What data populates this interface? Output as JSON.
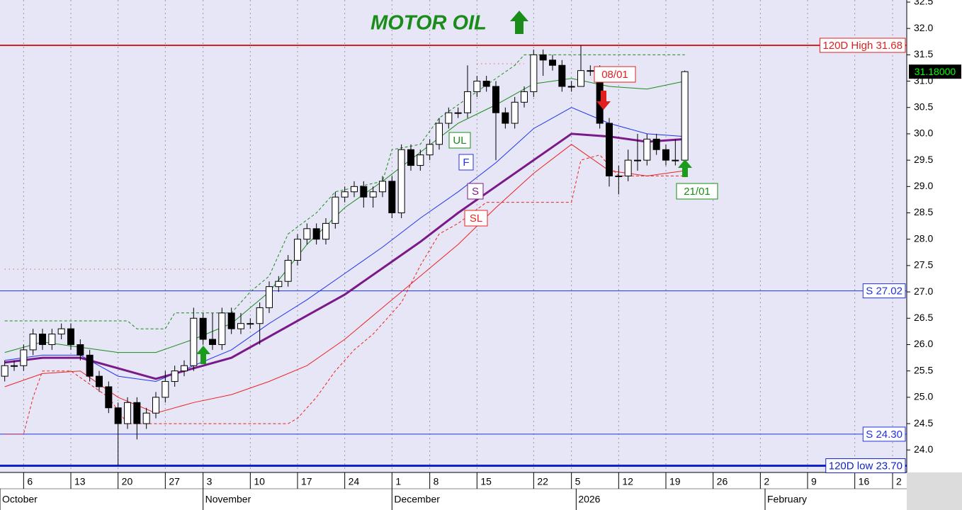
{
  "chart_data": {
    "type": "candlestick",
    "title": "MOTOR OIL",
    "x": [
      0,
      1,
      2,
      3,
      4,
      5,
      6,
      7,
      8,
      9,
      10,
      11,
      12,
      13,
      14,
      15,
      16,
      17,
      18,
      19,
      20,
      21,
      22,
      23,
      24,
      25,
      26,
      27,
      28,
      29,
      30,
      31,
      32,
      33,
      34,
      35,
      36,
      37,
      38,
      39,
      40,
      41,
      42,
      43,
      44,
      45,
      46,
      47,
      48,
      49,
      50,
      51,
      52,
      53,
      54,
      55,
      56,
      57,
      58,
      59,
      60,
      61,
      62,
      63,
      64,
      65,
      66,
      67,
      68,
      69,
      70,
      71,
      72
    ],
    "ohlc": {
      "up_color": "#ffffff",
      "down_color": "#000000",
      "open": [
        25.4,
        25.6,
        25.6,
        25.9,
        26.2,
        26.0,
        26.2,
        26.3,
        26.0,
        25.8,
        25.4,
        25.2,
        24.8,
        24.5,
        24.9,
        24.5,
        24.7,
        25.0,
        25.3,
        25.5,
        25.6,
        26.5,
        26.1,
        26.0,
        26.6,
        26.3,
        26.4,
        26.4,
        26.7,
        27.1,
        27.2,
        27.6,
        28.0,
        28.2,
        28.0,
        28.3,
        28.8,
        28.9,
        29.0,
        28.8,
        28.9,
        29.1,
        28.5,
        29.7,
        29.4,
        29.6,
        29.8,
        30.2,
        30.4,
        30.4,
        30.8,
        31.0,
        30.9,
        30.4,
        30.2,
        30.6,
        30.8,
        31.5,
        31.4,
        31.3,
        30.9,
        30.9,
        31.2,
        31.2,
        30.2,
        29.2,
        29.2,
        29.5,
        29.5,
        29.9,
        29.7,
        29.5,
        29.5
      ],
      "high": [
        25.7,
        25.7,
        26.0,
        26.3,
        26.3,
        26.3,
        26.4,
        26.4,
        26.1,
        25.9,
        25.5,
        25.3,
        24.9,
        25.0,
        25.0,
        24.8,
        25.1,
        25.5,
        25.6,
        25.7,
        26.7,
        26.6,
        26.6,
        26.7,
        26.7,
        26.6,
        26.5,
        26.8,
        27.2,
        27.3,
        27.7,
        28.1,
        28.3,
        28.3,
        28.4,
        28.9,
        29.0,
        29.1,
        29.1,
        29.0,
        29.2,
        29.2,
        29.8,
        29.8,
        29.7,
        29.9,
        30.3,
        30.5,
        30.5,
        31.3,
        31.1,
        31.1,
        31.0,
        30.5,
        30.7,
        30.9,
        31.6,
        31.6,
        31.5,
        31.4,
        31.0,
        31.68,
        31.3,
        31.3,
        30.3,
        29.4,
        29.7,
        30.0,
        30.0,
        30.0,
        29.8,
        29.9,
        31.2
      ],
      "low": [
        25.3,
        25.5,
        25.5,
        25.8,
        25.9,
        25.9,
        26.1,
        25.9,
        25.7,
        25.3,
        25.1,
        24.7,
        23.7,
        24.4,
        24.2,
        24.4,
        24.6,
        24.9,
        25.2,
        25.4,
        25.5,
        26.0,
        25.9,
        25.9,
        26.2,
        26.2,
        26.3,
        26.0,
        26.6,
        27.0,
        27.1,
        27.5,
        27.9,
        27.9,
        27.9,
        28.2,
        28.7,
        28.8,
        28.6,
        28.6,
        28.8,
        28.4,
        28.4,
        29.3,
        29.3,
        29.5,
        29.7,
        30.1,
        30.3,
        30.3,
        30.7,
        30.8,
        29.5,
        30.1,
        30.1,
        30.5,
        30.7,
        31.1,
        31.2,
        30.8,
        30.8,
        30.9,
        31.1,
        30.1,
        29.0,
        28.85,
        29.1,
        29.3,
        29.4,
        29.6,
        29.4,
        29.4,
        29.4
      ],
      "close": [
        25.6,
        25.6,
        25.9,
        26.2,
        26.0,
        26.2,
        26.3,
        26.0,
        25.8,
        25.4,
        25.2,
        24.8,
        24.5,
        24.9,
        24.5,
        24.7,
        25.0,
        25.3,
        25.5,
        25.6,
        26.5,
        26.1,
        26.0,
        26.6,
        26.3,
        26.4,
        26.4,
        26.7,
        27.1,
        27.2,
        27.6,
        28.0,
        28.2,
        28.0,
        28.3,
        28.8,
        28.9,
        29.0,
        28.8,
        28.9,
        29.1,
        28.5,
        29.7,
        29.4,
        29.6,
        29.8,
        30.2,
        30.4,
        30.4,
        30.8,
        31.0,
        30.9,
        30.4,
        30.2,
        30.6,
        30.8,
        31.5,
        31.4,
        31.3,
        30.9,
        30.9,
        31.2,
        31.2,
        30.2,
        29.2,
        29.2,
        29.5,
        29.5,
        29.9,
        29.7,
        29.5,
        29.5,
        31.18
      ]
    },
    "lines": [
      {
        "name": "UL",
        "color": "#1a8c1a",
        "width": 1,
        "x": [
          0,
          4,
          8,
          12,
          16,
          20,
          24,
          28,
          32,
          36,
          40,
          44,
          48,
          52,
          56,
          60,
          64,
          68,
          72
        ],
        "values": [
          25.85,
          26.05,
          25.95,
          25.85,
          25.85,
          26.1,
          26.4,
          27.0,
          27.9,
          28.6,
          29.1,
          29.65,
          30.2,
          30.55,
          30.95,
          31.05,
          30.9,
          30.85,
          31.0
        ]
      },
      {
        "name": "F",
        "color": "#2233ee",
        "width": 1,
        "x": [
          0,
          4,
          8,
          12,
          16,
          20,
          24,
          28,
          32,
          36,
          40,
          44,
          48,
          52,
          56,
          60,
          64,
          68,
          72
        ],
        "values": [
          25.7,
          25.8,
          25.8,
          25.4,
          25.3,
          25.6,
          25.9,
          26.4,
          26.85,
          27.35,
          27.85,
          28.4,
          28.9,
          29.45,
          30.1,
          30.5,
          30.2,
          30.0,
          29.95
        ]
      },
      {
        "name": "S",
        "color": "#7a1a8a",
        "width": 3,
        "x": [
          0,
          4,
          8,
          12,
          16,
          20,
          24,
          28,
          32,
          36,
          40,
          44,
          48,
          52,
          56,
          60,
          64,
          68,
          72
        ],
        "values": [
          25.66,
          25.75,
          25.75,
          25.55,
          25.35,
          25.55,
          25.75,
          26.15,
          26.55,
          26.95,
          27.45,
          27.95,
          28.5,
          29.0,
          29.5,
          30.0,
          29.95,
          29.85,
          29.9
        ]
      },
      {
        "name": "SL",
        "color": "#ee2222",
        "width": 1,
        "x": [
          0,
          4,
          8,
          12,
          16,
          20,
          24,
          28,
          32,
          36,
          40,
          44,
          48,
          52,
          56,
          60,
          64,
          68,
          72
        ],
        "values": [
          25.2,
          25.45,
          25.5,
          25.0,
          24.7,
          24.9,
          25.05,
          25.3,
          25.6,
          26.1,
          26.7,
          27.3,
          27.9,
          28.6,
          29.25,
          29.8,
          29.3,
          29.2,
          29.3
        ]
      },
      {
        "color": "#ee2222",
        "width": 1,
        "dash": "4,3",
        "x": [
          0,
          2,
          3,
          4,
          7,
          11,
          13,
          30,
          31,
          33,
          35,
          37,
          39,
          42,
          44,
          46,
          48,
          51,
          60,
          61,
          63,
          65,
          72
        ],
        "values": [
          24.3,
          24.3,
          25.0,
          25.5,
          25.5,
          25.0,
          24.5,
          24.5,
          24.6,
          25.0,
          25.5,
          25.9,
          26.2,
          26.8,
          27.5,
          28.1,
          28.3,
          28.7,
          28.7,
          29.5,
          29.6,
          29.2,
          29.2
        ]
      },
      {
        "color": "#1a8c1a",
        "width": 1,
        "dash": "4,3",
        "x": [
          0,
          13,
          14,
          17,
          18,
          24,
          26,
          28,
          30,
          33,
          35,
          40,
          41,
          44,
          46,
          50,
          54,
          55,
          72
        ],
        "values": [
          26.45,
          26.45,
          26.3,
          26.3,
          26.6,
          26.6,
          27.0,
          27.3,
          28.1,
          28.5,
          28.9,
          29.1,
          29.7,
          29.8,
          30.3,
          30.8,
          31.3,
          31.5,
          31.5
        ]
      },
      {
        "color": "#ee2222",
        "width": 1,
        "dash": "1,5",
        "x": [
          0,
          26
        ],
        "values": [
          27.43,
          27.43
        ]
      },
      {
        "color": "#ee2222",
        "width": 1,
        "dash": "1,5",
        "x": [
          50,
          55
        ],
        "values": [
          31.33,
          31.33
        ]
      }
    ],
    "levels": [
      {
        "value": 31.68,
        "label": "120D High 31.68",
        "color": "#e02020",
        "width": 2
      },
      {
        "value": 27.02,
        "label": "S 27.02",
        "color": "#2233dd",
        "width": 1
      },
      {
        "value": 24.3,
        "label": "S 24.30",
        "color": "#2233dd",
        "width": 1
      },
      {
        "value": 23.7,
        "label": "120D low 23.70",
        "color": "#1122cc",
        "width": 3
      }
    ],
    "last_price": {
      "value": 31.18,
      "label": "31.18000"
    },
    "annotations": [
      {
        "text": "08/01",
        "color": "#e02020"
      },
      {
        "text": "21/01",
        "color": "#1a8c1a"
      }
    ],
    "xlim": [
      -0.5,
      95.5
    ],
    "xticks": [
      {
        "value": 2,
        "label": "6"
      },
      {
        "value": 7,
        "label": "13"
      },
      {
        "value": 12,
        "label": "20"
      },
      {
        "value": 17,
        "label": "27"
      },
      {
        "value": 21,
        "label": "3"
      },
      {
        "value": 26,
        "label": "10"
      },
      {
        "value": 31,
        "label": "17"
      },
      {
        "value": 36,
        "label": "24"
      },
      {
        "value": 41,
        "label": "1"
      },
      {
        "value": 45,
        "label": "8"
      },
      {
        "value": 50,
        "label": "15"
      },
      {
        "value": 56,
        "label": "22"
      },
      {
        "value": 60,
        "label": "5"
      },
      {
        "value": 65,
        "label": "12"
      },
      {
        "value": 70,
        "label": "19"
      },
      {
        "value": 75,
        "label": "26"
      },
      {
        "value": 80,
        "label": "2"
      },
      {
        "value": 85,
        "label": "9"
      },
      {
        "value": 90,
        "label": "16"
      },
      {
        "value": 94,
        "label": "2"
      }
    ],
    "month_labels": [
      {
        "value": -0.5,
        "label": "October"
      },
      {
        "value": 21,
        "label": "November"
      },
      {
        "value": 41,
        "label": "December"
      },
      {
        "value": 60.5,
        "label": "2026"
      },
      {
        "value": 80.5,
        "label": "February"
      }
    ],
    "ylim": [
      23.6,
      32.54
    ],
    "yticks": [
      {
        "value": 24.0,
        "label": "24.0"
      },
      {
        "value": 24.5,
        "label": "24.5"
      },
      {
        "value": 25.0,
        "label": "25.0"
      },
      {
        "value": 25.5,
        "label": "25.5"
      },
      {
        "value": 26.0,
        "label": "26.0"
      },
      {
        "value": 26.5,
        "label": "26.5"
      },
      {
        "value": 27.0,
        "label": "27.0"
      },
      {
        "value": 27.5,
        "label": "27.5"
      },
      {
        "value": 28.0,
        "label": "28.0"
      },
      {
        "value": 28.5,
        "label": "28.5"
      },
      {
        "value": 29.0,
        "label": "29.0"
      },
      {
        "value": 29.5,
        "label": "29.5"
      },
      {
        "value": 30.0,
        "label": "30.0"
      },
      {
        "value": 30.5,
        "label": "30.5"
      },
      {
        "value": 31.0,
        "label": "31.0"
      },
      {
        "value": 31.5,
        "label": "31.5"
      },
      {
        "value": 32.0,
        "label": "32.0"
      },
      {
        "value": 32.5,
        "label": "32.5"
      }
    ],
    "grid": true
  }
}
